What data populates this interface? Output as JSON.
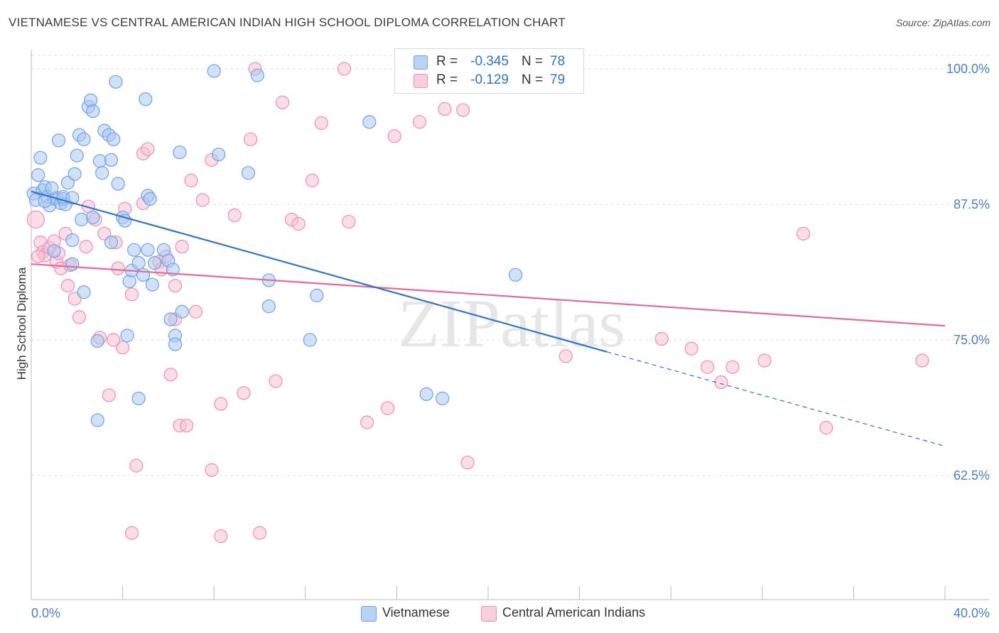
{
  "title": "VIETNAMESE VS CENTRAL AMERICAN INDIAN HIGH SCHOOL DIPLOMA CORRELATION CHART",
  "source": "Source: ZipAtlas.com",
  "watermark": "ZIPatlas",
  "legend": {
    "rows": [
      {
        "r_label": "R =",
        "r_value": "-0.345",
        "n_label": "N =",
        "n_value": "78",
        "color": "#6fa3e8"
      },
      {
        "r_label": "R =",
        "r_value": "-0.129",
        "n_label": "N =",
        "n_value": "79",
        "color": "#ee8fb1"
      }
    ]
  },
  "bottom_legend": [
    {
      "label": "Vietnamese",
      "color": "#6fa3e8"
    },
    {
      "label": "Central American Indians",
      "color": "#ee8fb1"
    }
  ],
  "colors": {
    "blue_fill": "#a9c8f2",
    "blue_stroke": "#6fa3e8",
    "blue_line": "#2f74d0",
    "pink_fill": "#f7c1d3",
    "pink_stroke": "#ee8fb1",
    "pink_line": "#e7699a",
    "tick_label": "#4a7fd0",
    "grid": "#dddddd"
  },
  "chart_data": {
    "type": "scatter",
    "xlabel": "",
    "ylabel": "High School Diploma",
    "xlim": [
      0,
      40
    ],
    "ylim": [
      53,
      102.5
    ],
    "x_tick_labels": [
      "0.0%",
      "40.0%"
    ],
    "y_ticks": [
      62.5,
      75.0,
      87.5,
      100.0
    ],
    "y_tick_labels": [
      "62.5%",
      "75.0%",
      "87.5%",
      "100.0%"
    ],
    "grid": "horizontal dashed",
    "legend_position": "top-center",
    "series": [
      {
        "name": "Vietnamese",
        "color": "#6fa3e8",
        "trend": {
          "x": [
            0,
            25.2
          ],
          "y": [
            88.7,
            73.9
          ],
          "dashed_extension": {
            "x": [
              25.2,
              40
            ],
            "y": [
              73.9,
              65.2
            ]
          }
        },
        "points": [
          [
            0.1,
            88.5
          ],
          [
            0.2,
            87.9
          ],
          [
            0.3,
            90.2
          ],
          [
            0.5,
            88.8
          ],
          [
            0.6,
            89.1
          ],
          [
            0.7,
            88.2
          ],
          [
            0.4,
            91.8
          ],
          [
            0.8,
            87.4
          ],
          [
            1.0,
            88.0
          ],
          [
            1.1,
            88.1
          ],
          [
            1.3,
            87.6
          ],
          [
            1.4,
            88.0
          ],
          [
            1.5,
            87.5
          ],
          [
            1.6,
            89.5
          ],
          [
            1.9,
            90.3
          ],
          [
            2.0,
            92.0
          ],
          [
            2.1,
            93.9
          ],
          [
            2.3,
            93.5
          ],
          [
            0.6,
            87.8
          ],
          [
            1.2,
            93.4
          ],
          [
            2.5,
            96.5
          ],
          [
            2.6,
            97.1
          ],
          [
            2.7,
            96.1
          ],
          [
            3.0,
            91.5
          ],
          [
            3.1,
            90.4
          ],
          [
            3.2,
            94.3
          ],
          [
            3.4,
            93.9
          ],
          [
            3.5,
            91.6
          ],
          [
            3.6,
            93.5
          ],
          [
            3.7,
            98.8
          ],
          [
            3.8,
            89.4
          ],
          [
            4.0,
            86.3
          ],
          [
            4.1,
            86.0
          ],
          [
            5.0,
            97.2
          ],
          [
            5.1,
            88.3
          ],
          [
            5.2,
            88.0
          ],
          [
            1.8,
            84.2
          ],
          [
            2.2,
            86.1
          ],
          [
            2.7,
            86.3
          ],
          [
            3.5,
            84.0
          ],
          [
            4.5,
            83.3
          ],
          [
            5.1,
            83.3
          ],
          [
            5.4,
            82.1
          ],
          [
            5.8,
            83.3
          ],
          [
            6.0,
            82.3
          ],
          [
            6.2,
            81.5
          ],
          [
            6.5,
            92.3
          ],
          [
            8.2,
            92.1
          ],
          [
            8.0,
            99.8
          ],
          [
            9.5,
            90.4
          ],
          [
            9.9,
            99.4
          ],
          [
            10.4,
            80.5
          ],
          [
            10.4,
            78.1
          ],
          [
            12.5,
            79.1
          ],
          [
            12.2,
            75.0
          ],
          [
            14.8,
            95.1
          ],
          [
            17.3,
            70.0
          ],
          [
            18.0,
            69.6
          ],
          [
            21.2,
            81.0
          ],
          [
            4.3,
            80.4
          ],
          [
            4.4,
            81.4
          ],
          [
            4.9,
            81.0
          ],
          [
            5.3,
            80.1
          ],
          [
            1.0,
            83.2
          ],
          [
            1.8,
            82.0
          ],
          [
            2.3,
            79.4
          ],
          [
            2.9,
            74.9
          ],
          [
            2.9,
            67.6
          ],
          [
            4.2,
            75.4
          ],
          [
            4.7,
            69.6
          ],
          [
            6.1,
            76.9
          ],
          [
            6.3,
            75.4
          ],
          [
            6.3,
            74.6
          ],
          [
            6.6,
            77.6
          ],
          [
            4.7,
            82.1
          ],
          [
            1.4,
            88.2
          ],
          [
            0.9,
            89.0
          ],
          [
            1.8,
            88.1
          ]
        ]
      },
      {
        "name": "Central American Indians",
        "color": "#ee8fb1",
        "trend": {
          "x": [
            0,
            40
          ],
          "y": [
            82.0,
            76.3
          ]
        },
        "points": [
          [
            0.2,
            86.1
          ],
          [
            0.4,
            84.0
          ],
          [
            0.5,
            83.1
          ],
          [
            0.6,
            82.8
          ],
          [
            0.8,
            83.5
          ],
          [
            1.0,
            84.1
          ],
          [
            1.1,
            82.2
          ],
          [
            1.3,
            81.6
          ],
          [
            1.5,
            84.8
          ],
          [
            1.6,
            80.0
          ],
          [
            1.7,
            81.9
          ],
          [
            1.9,
            78.8
          ],
          [
            2.1,
            77.1
          ],
          [
            2.4,
            83.6
          ],
          [
            2.5,
            87.3
          ],
          [
            2.8,
            86.1
          ],
          [
            3.0,
            75.2
          ],
          [
            3.2,
            84.8
          ],
          [
            3.4,
            69.9
          ],
          [
            3.7,
            84.0
          ],
          [
            3.8,
            81.6
          ],
          [
            4.0,
            74.3
          ],
          [
            4.1,
            87.1
          ],
          [
            4.4,
            79.2
          ],
          [
            4.6,
            63.4
          ],
          [
            4.4,
            57.2
          ],
          [
            4.9,
            92.2
          ],
          [
            5.1,
            92.6
          ],
          [
            4.9,
            87.6
          ],
          [
            5.6,
            82.2
          ],
          [
            5.7,
            81.5
          ],
          [
            5.9,
            82.7
          ],
          [
            6.1,
            71.8
          ],
          [
            6.3,
            76.9
          ],
          [
            6.5,
            67.1
          ],
          [
            6.8,
            67.1
          ],
          [
            6.6,
            83.6
          ],
          [
            6.3,
            80.0
          ],
          [
            7.0,
            89.7
          ],
          [
            7.2,
            77.6
          ],
          [
            7.5,
            87.9
          ],
          [
            7.9,
            91.6
          ],
          [
            7.9,
            63.0
          ],
          [
            8.3,
            69.1
          ],
          [
            8.3,
            56.9
          ],
          [
            8.9,
            86.5
          ],
          [
            9.3,
            70.1
          ],
          [
            9.6,
            93.5
          ],
          [
            9.8,
            100.0
          ],
          [
            10.0,
            57.2
          ],
          [
            10.7,
            71.2
          ],
          [
            11.0,
            96.9
          ],
          [
            11.4,
            86.1
          ],
          [
            11.7,
            85.7
          ],
          [
            12.3,
            89.7
          ],
          [
            12.7,
            95.0
          ],
          [
            13.9,
            85.9
          ],
          [
            13.7,
            100.0
          ],
          [
            14.7,
            67.4
          ],
          [
            15.6,
            68.7
          ],
          [
            15.9,
            93.8
          ],
          [
            17.0,
            95.1
          ],
          [
            18.1,
            96.3
          ],
          [
            18.9,
            96.2
          ],
          [
            19.1,
            63.7
          ],
          [
            22.6,
            100.0
          ],
          [
            23.4,
            73.5
          ],
          [
            27.6,
            75.1
          ],
          [
            28.9,
            74.2
          ],
          [
            29.6,
            72.5
          ],
          [
            30.2,
            71.1
          ],
          [
            30.7,
            72.5
          ],
          [
            32.1,
            73.1
          ],
          [
            33.8,
            84.8
          ],
          [
            34.8,
            66.9
          ],
          [
            39.0,
            73.1
          ],
          [
            0.3,
            82.7
          ],
          [
            1.2,
            83.0
          ],
          [
            3.6,
            75.0
          ]
        ]
      }
    ]
  }
}
